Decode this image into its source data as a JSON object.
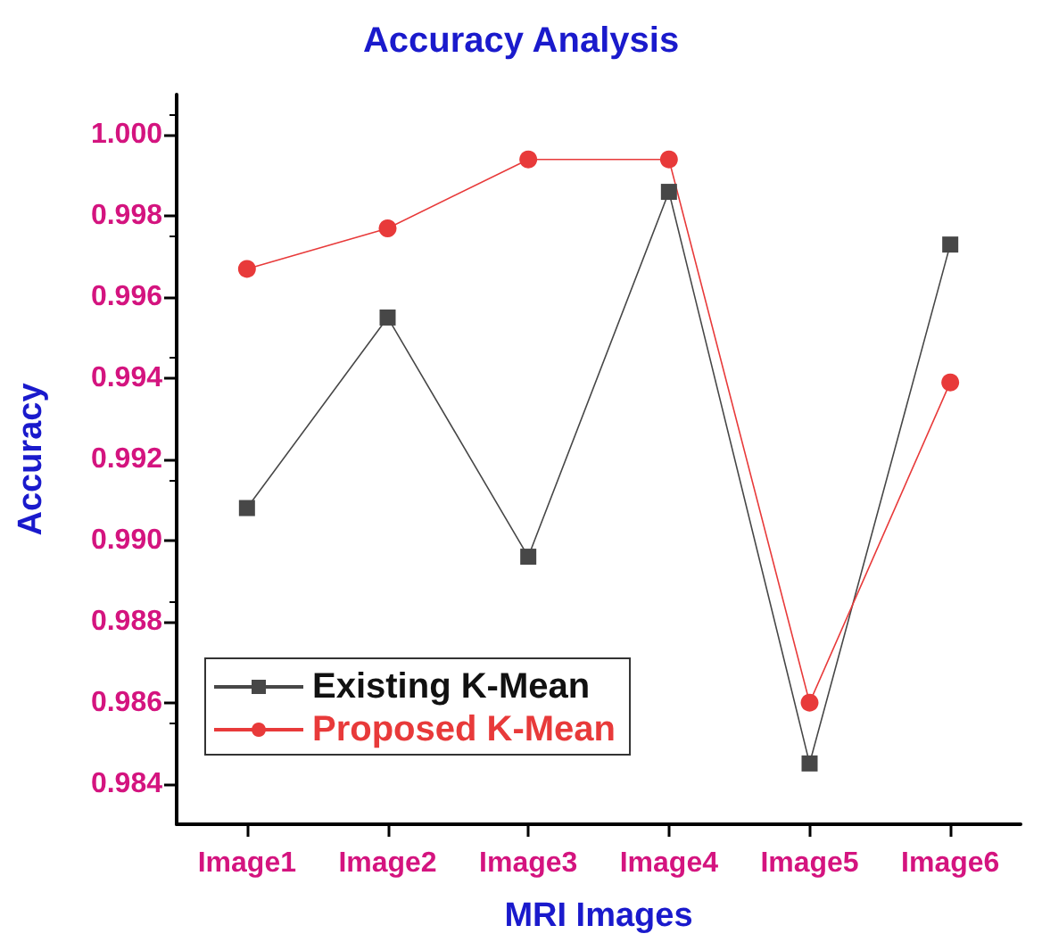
{
  "chart_data": {
    "type": "line",
    "title": "Accuracy Analysis",
    "xlabel": "MRI Images",
    "ylabel": "Accuracy",
    "categories": [
      "Image1",
      "Image2",
      "Image3",
      "Image4",
      "Image5",
      "Image6"
    ],
    "series": [
      {
        "name": "Existing K-Mean",
        "color": "#474747",
        "marker": "square",
        "values": [
          0.9908,
          0.9955,
          0.9896,
          0.9986,
          0.9845,
          0.9973
        ]
      },
      {
        "name": "Proposed K-Mean",
        "color": "#e83a3a",
        "marker": "circle",
        "values": [
          0.9967,
          0.9977,
          0.9994,
          0.9994,
          0.986,
          0.9939
        ]
      }
    ],
    "ylim": [
      0.983,
      1.001
    ],
    "yticks": [
      0.984,
      0.986,
      0.988,
      {
        "value": 0.99,
        "label": "0.990"
      },
      0.992,
      0.994,
      0.996,
      0.998,
      {
        "value": 1,
        "label": "1.000"
      }
    ],
    "grid": false,
    "legend": "bottom left",
    "line_style": "solid"
  }
}
